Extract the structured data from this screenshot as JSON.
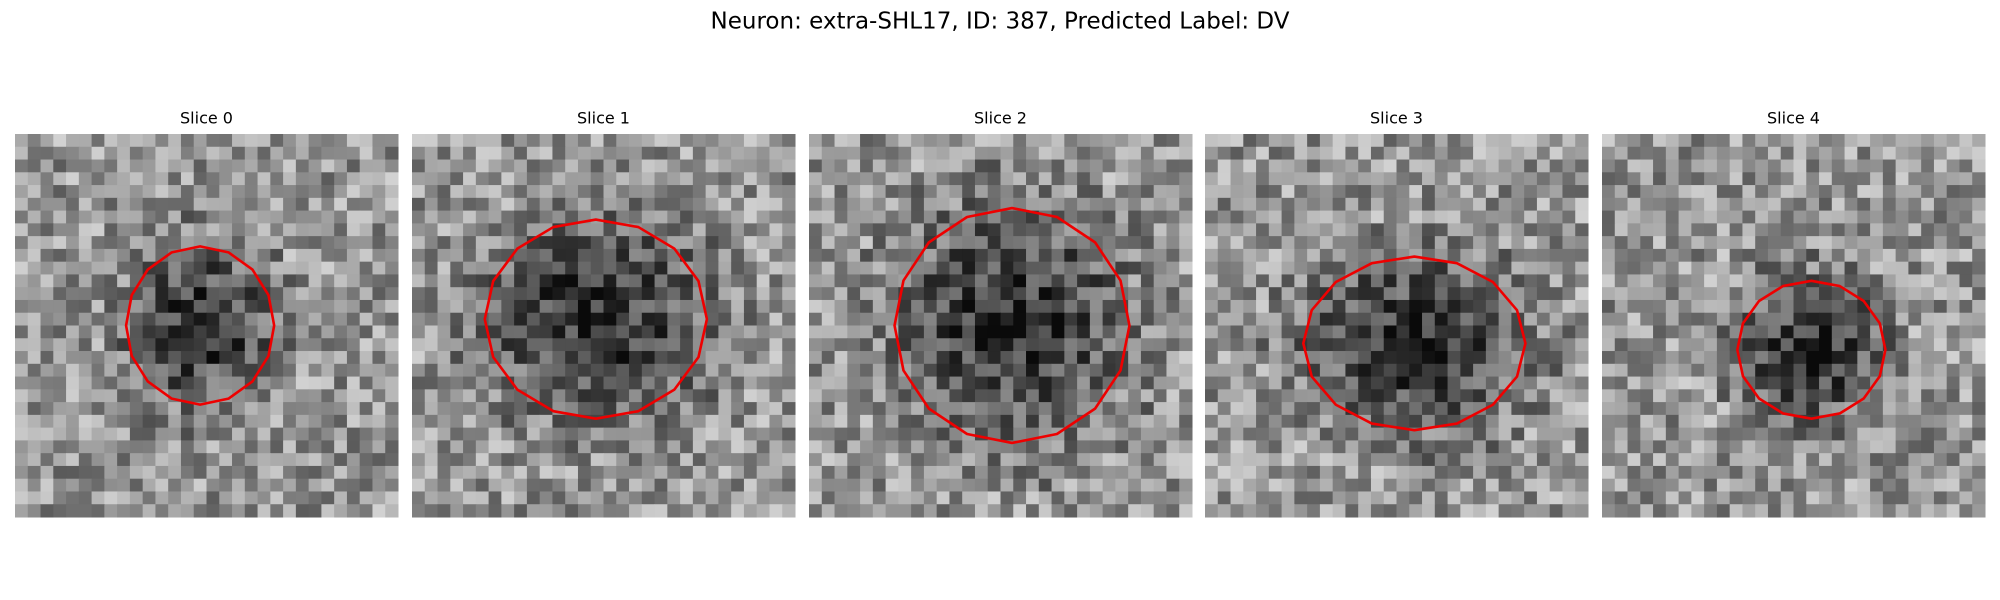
{
  "figure": {
    "title": "Neuron: extra-SHL17, ID: 387, Predicted Label: DV",
    "panels": [
      {
        "title": "Slice 0"
      },
      {
        "title": "Slice 1"
      },
      {
        "title": "Slice 2"
      },
      {
        "title": "Slice 3"
      },
      {
        "title": "Slice 4"
      }
    ]
  }
}
